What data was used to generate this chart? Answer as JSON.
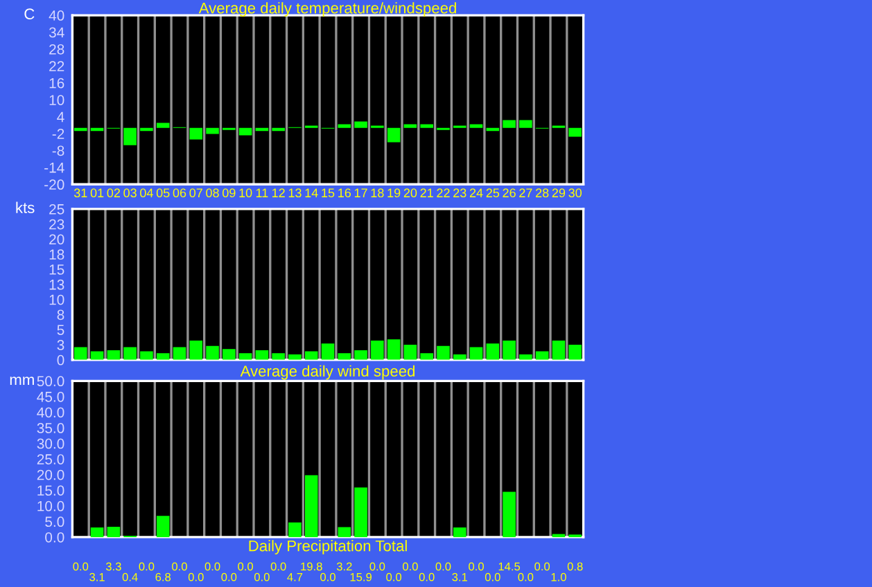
{
  "chart_data": [
    {
      "type": "bar",
      "title": "Average daily temperature/windspeed",
      "ylabel": "C",
      "categories": [
        "31",
        "01",
        "02",
        "03",
        "04",
        "05",
        "06",
        "07",
        "08",
        "09",
        "10",
        "11",
        "12",
        "13",
        "14",
        "15",
        "16",
        "17",
        "18",
        "19",
        "20",
        "21",
        "22",
        "23",
        "24",
        "25",
        "26",
        "27",
        "28",
        "29",
        "30"
      ],
      "series": [
        {
          "color": "#00ff00",
          "values": [
            -1.1,
            -1.1,
            -0.2,
            -6.1,
            -1.1,
            1.8,
            0.3,
            -4.1,
            -2.1,
            -0.7,
            -2.6,
            -1.1,
            -1.1,
            0.3,
            0.8,
            -0.2,
            1.3,
            2.3,
            0.8,
            -5.1,
            1.3,
            1.3,
            -0.7,
            0.8,
            1.3,
            -1.1,
            2.8,
            2.8,
            -0.2,
            0.8,
            -3.1
          ]
        }
      ],
      "ylim": [
        -20,
        40
      ],
      "yticks": [
        -20,
        -14,
        -8,
        -2,
        4,
        10,
        16,
        22,
        28,
        34,
        40
      ],
      "grid": "x"
    },
    {
      "type": "bar",
      "title": "Average daily wind speed",
      "ylabel": "kts",
      "categories": [
        "31",
        "01",
        "02",
        "03",
        "04",
        "05",
        "06",
        "07",
        "08",
        "09",
        "10",
        "11",
        "12",
        "13",
        "14",
        "15",
        "16",
        "17",
        "18",
        "19",
        "20",
        "21",
        "22",
        "23",
        "24",
        "25",
        "26",
        "27",
        "28",
        "29",
        "30"
      ],
      "series": [
        {
          "color": "#00ff00",
          "values": [
            2.1,
            1.4,
            1.6,
            2.1,
            1.4,
            1.1,
            2.1,
            3.2,
            2.3,
            1.8,
            1.1,
            1.6,
            1.1,
            0.9,
            1.4,
            2.7,
            1.1,
            1.6,
            3.2,
            3.4,
            2.5,
            1.1,
            2.3,
            0.9,
            2.1,
            2.7,
            3.2,
            0.9,
            1.4,
            3.2,
            2.5
          ]
        }
      ],
      "ylim": [
        0,
        25
      ],
      "yticks": [
        0,
        {
          "value": 2.5,
          "label": "3"
        },
        5,
        {
          "value": 7.5,
          "label": "8"
        },
        10,
        {
          "value": 12.5,
          "label": "13"
        },
        15,
        {
          "value": 17.5,
          "label": "18"
        },
        20,
        {
          "value": 22.5,
          "label": "23"
        },
        25
      ],
      "grid": "x",
      "tick_labels": "y"
    },
    {
      "type": "bar",
      "title": "Daily Precipitation Total",
      "ylabel": "mm",
      "categories": [
        "31",
        "01",
        "02",
        "03",
        "04",
        "05",
        "06",
        "07",
        "08",
        "09",
        "10",
        "11",
        "12",
        "13",
        "14",
        "15",
        "16",
        "17",
        "18",
        "19",
        "20",
        "21",
        "22",
        "23",
        "24",
        "25",
        "26",
        "27",
        "28",
        "29",
        "30"
      ],
      "series": [
        {
          "color": "#00ff00",
          "values": [
            0,
            3.1,
            3.3,
            0.4,
            0,
            6.8,
            0,
            0,
            0,
            0,
            0,
            0,
            0,
            4.7,
            19.8,
            0,
            3.2,
            15.9,
            0,
            0,
            0,
            0,
            0,
            3.1,
            0,
            0,
            14.5,
            0,
            0,
            1.0,
            0.8
          ],
          "value_labels": [
            "0.0",
            "3.1",
            "3.3",
            "0.4",
            "0.0",
            "6.8",
            "0.0",
            "0.0",
            "0.0",
            "0.0",
            "0.0",
            "0.0",
            "0.0",
            "4.7",
            "19.8",
            "0.0",
            "3.2",
            "15.9",
            "0.0",
            "0.0",
            "0.0",
            "0.0",
            "0.0",
            "3.1",
            "0.0",
            "0.0",
            "14.5",
            "0.0",
            "0.0",
            "1.0",
            "0.8"
          ]
        }
      ],
      "ylim": [
        0,
        50
      ],
      "yticks": [
        {
          "value": 0,
          "label": "0.0"
        },
        {
          "value": 5,
          "label": "5.0"
        },
        {
          "value": 10,
          "label": "10.0"
        },
        {
          "value": 15,
          "label": "15.0"
        },
        {
          "value": 20,
          "label": "20.0"
        },
        {
          "value": 25,
          "label": "25.0"
        },
        {
          "value": 30,
          "label": "30.0"
        },
        {
          "value": 35,
          "label": "35.0"
        },
        {
          "value": 40,
          "label": "40.0"
        },
        {
          "value": 45,
          "label": "45.0"
        },
        {
          "value": 50,
          "label": "50.0"
        }
      ],
      "grid": "x",
      "tick_labels": "y"
    }
  ]
}
